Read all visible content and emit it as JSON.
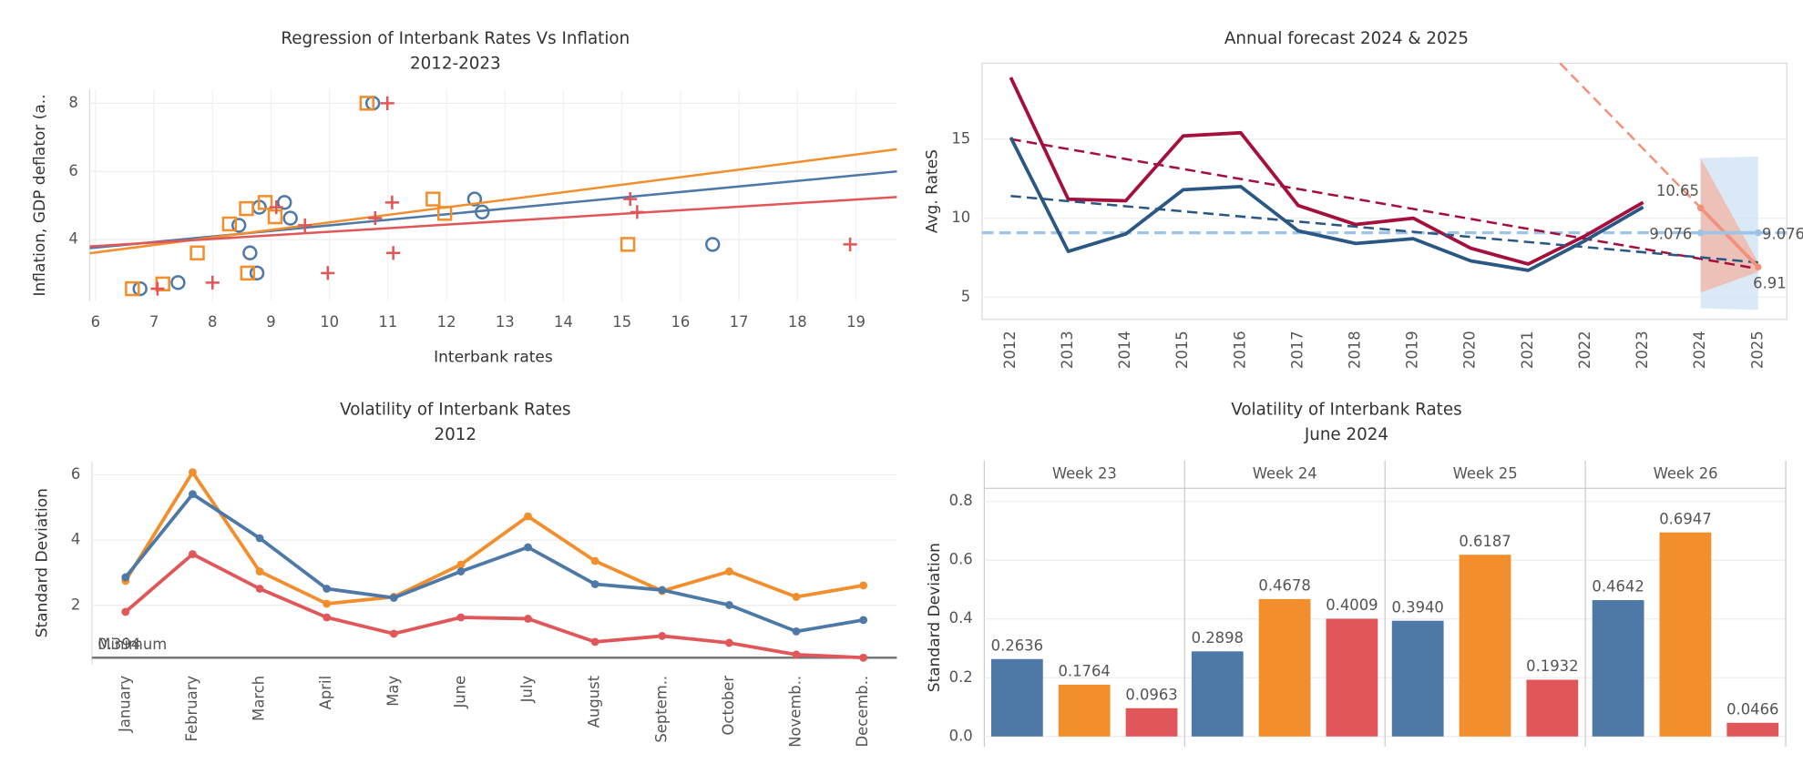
{
  "chart_data": [
    {
      "type": "scatter",
      "title": "Regression of Interbank Rates Vs Inflation",
      "subtitle": "2012-2023",
      "x_label": "Interbank rates",
      "y_label": "Inflation, GDP deflator (a..",
      "xlim": [
        5.9,
        19.7
      ],
      "xticks": [
        6,
        7,
        8,
        9,
        10,
        11,
        12,
        13,
        14,
        15,
        16,
        17,
        18,
        19
      ],
      "ylim": [
        2.2,
        8.4
      ],
      "yticks": [
        4,
        6,
        8
      ],
      "grid": true,
      "series": [
        {
          "color": "#4e79a7",
          "marker": "circle",
          "x": [
            6.76,
            7.41,
            8.45,
            8.8,
            8.64,
            8.76,
            9.23,
            9.33,
            10.74,
            12.48,
            12.61,
            16.55
          ],
          "values": [
            2.56,
            2.74,
            4.42,
            4.95,
            3.61,
            3.02,
            5.09,
            4.63,
            8.0,
            5.19,
            4.81,
            3.86
          ],
          "trend": [
            3.75,
            6.0
          ]
        },
        {
          "color": "#f28e2b",
          "marker": "square",
          "x": [
            6.63,
            7.15,
            7.74,
            8.29,
            8.58,
            8.6,
            8.9,
            9.07,
            10.64,
            11.77,
            11.97,
            15.1
          ],
          "values": [
            2.56,
            2.7,
            3.61,
            4.46,
            4.91,
            3.02,
            5.09,
            4.67,
            8.0,
            5.19,
            4.77,
            3.86
          ],
          "trend": [
            3.6,
            6.65
          ]
        },
        {
          "color": "#e15759",
          "marker": "plus",
          "x": [
            7.06,
            8.0,
            9.58,
            9.09,
            9.97,
            10.78,
            10.99,
            11.07,
            11.09,
            15.14,
            15.26,
            18.9
          ],
          "values": [
            2.56,
            2.74,
            4.42,
            4.95,
            3.02,
            4.63,
            8.0,
            5.09,
            3.61,
            5.19,
            4.81,
            3.86
          ],
          "trend": [
            3.8,
            5.25
          ]
        }
      ]
    },
    {
      "type": "line",
      "title": "Annual forecast 2024 & 2025",
      "y_label": "Avg. RateS",
      "categories": [
        "2012",
        "2013",
        "2014",
        "2015",
        "2016",
        "2017",
        "2018",
        "2019",
        "2020",
        "2021",
        "2022",
        "2023",
        "2024",
        "2025"
      ],
      "ylim": [
        3.6,
        19.8
      ],
      "yticks": [
        5,
        10,
        15
      ],
      "grid": true,
      "reference_line": {
        "value": 9.076,
        "color": "#9dc3e6"
      },
      "bands": [
        {
          "color": "#cfe2f3",
          "low": [
            null,
            null,
            null,
            null,
            null,
            null,
            null,
            null,
            null,
            null,
            null,
            null,
            4.3,
            4.2
          ],
          "high": [
            null,
            null,
            null,
            null,
            null,
            null,
            null,
            null,
            null,
            null,
            null,
            null,
            13.8,
            13.9
          ]
        },
        {
          "color": "#f2b3a3",
          "low": [
            null,
            null,
            null,
            null,
            null,
            null,
            null,
            null,
            null,
            null,
            null,
            null,
            5.3,
            6.6
          ],
          "high": [
            null,
            null,
            null,
            null,
            null,
            null,
            null,
            null,
            null,
            null,
            null,
            null,
            13.8,
            7.2
          ]
        }
      ],
      "series": [
        {
          "color": "#a50f3c",
          "values": [
            18.9,
            11.2,
            11.1,
            15.2,
            15.4,
            10.8,
            9.6,
            10.0,
            8.1,
            7.1,
            8.9,
            11.0,
            null,
            null
          ],
          "trend": [
            15.0,
            6.8
          ]
        },
        {
          "color": "#2a5783",
          "values": [
            15.1,
            7.9,
            9.0,
            11.8,
            12.0,
            9.2,
            8.4,
            8.7,
            7.3,
            6.7,
            8.6,
            10.7,
            null,
            null
          ],
          "trend": [
            11.4,
            7.2
          ]
        },
        {
          "color": "#f4917a",
          "values": [
            null,
            null,
            null,
            null,
            null,
            null,
            null,
            null,
            null,
            null,
            null,
            null,
            10.65,
            6.91
          ]
        },
        {
          "color": "#9dc3e6",
          "values": [
            null,
            null,
            null,
            null,
            null,
            null,
            null,
            null,
            null,
            null,
            null,
            null,
            9.076,
            9.076
          ]
        }
      ]
    },
    {
      "type": "line",
      "title": "Volatility of Interbank Rates",
      "subtitle": "2012",
      "y_label": "Standard Deviation",
      "categories": [
        "January",
        "February",
        "March",
        "April",
        "May",
        "June",
        "July",
        "August",
        "Septem..",
        "October",
        "Novemb..",
        "Decemb.."
      ],
      "ylim": [
        0.2,
        6.4
      ],
      "yticks": [
        2,
        4,
        6
      ],
      "grid": true,
      "markers": true,
      "reference_line": {
        "label": "Minimum",
        "value": 0.394,
        "color": "#777777"
      },
      "series": [
        {
          "color": "#f28e2b",
          "values": [
            2.75,
            6.08,
            3.04,
            2.05,
            2.26,
            3.25,
            4.73,
            3.36,
            2.44,
            3.04,
            2.26,
            2.61
          ]
        },
        {
          "color": "#4e79a7",
          "values": [
            2.86,
            5.41,
            4.06,
            2.51,
            2.23,
            3.04,
            3.78,
            2.65,
            2.47,
            2.01,
            1.2,
            1.55
          ]
        },
        {
          "color": "#e15759",
          "values": [
            1.8,
            3.57,
            2.51,
            1.63,
            1.13,
            1.63,
            1.59,
            0.88,
            1.06,
            0.85,
            0.49,
            0.394
          ]
        }
      ]
    },
    {
      "type": "bar",
      "title": "Volatility of Interbank Rates",
      "subtitle": "June 2024",
      "y_label": "Standard Deviation",
      "categories": [
        "Week 23",
        "Week 24",
        "Week 25",
        "Week 26"
      ],
      "ylim": [
        -0.035,
        0.845
      ],
      "yticks": [
        {
          "value": 0,
          "label": "0.0"
        },
        0.2,
        0.4,
        0.6,
        0.8
      ],
      "grid": true,
      "series": [
        {
          "color": "#4e79a7",
          "values": [
            0.2636,
            0.2898,
            0.394,
            0.4642
          ],
          "value_labels": [
            "0.2636",
            "0.2898",
            "0.3940",
            "0.4642"
          ]
        },
        {
          "color": "#f28e2b",
          "values": [
            0.1764,
            0.4678,
            0.6187,
            0.6947
          ]
        },
        {
          "color": "#e15759",
          "values": [
            0.0963,
            0.4009,
            0.1932,
            0.0466
          ]
        }
      ]
    }
  ]
}
